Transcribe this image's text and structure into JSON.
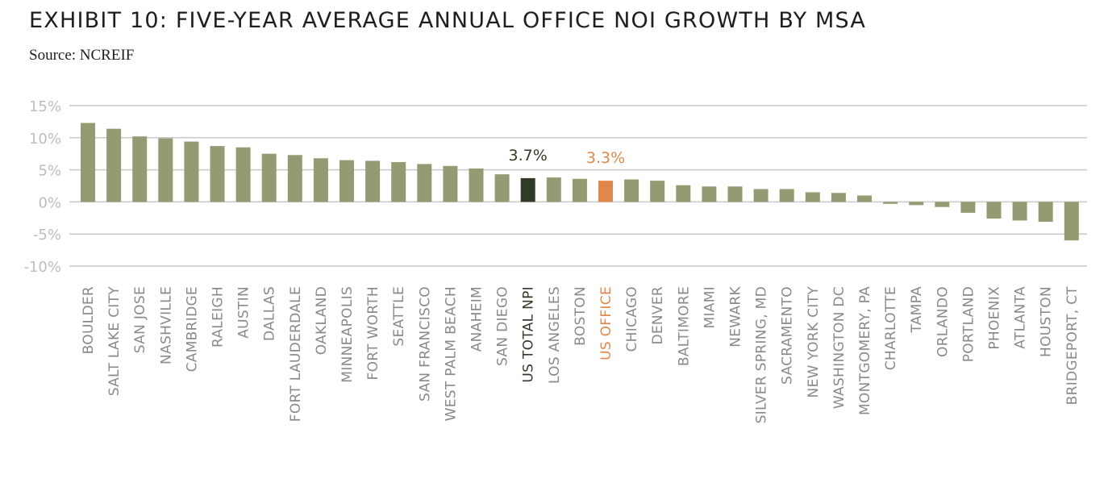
{
  "title": "EXHIBIT 10: FIVE-YEAR AVERAGE ANNUAL OFFICE NOI GROWTH BY MSA",
  "subtitle": "Source: NCREIF",
  "colors": {
    "default_bar": "#939b72",
    "us_total_npi": "#2f3b27",
    "us_office": "#e0884c",
    "grid": "#c9c9c9",
    "tick_text": "#bdbdbd",
    "label_text": "#8a8a8a"
  },
  "chart_data": {
    "type": "bar",
    "title": "EXHIBIT 10: FIVE-YEAR AVERAGE ANNUAL OFFICE NOI GROWTH BY MSA",
    "xlabel": "",
    "ylabel": "",
    "ylim": [
      -10,
      15
    ],
    "yticks": [
      15,
      10,
      5,
      0,
      -5,
      -10
    ],
    "ytick_labels": [
      "15%",
      "10%",
      "5%",
      "0%",
      "-5%",
      "-10%"
    ],
    "grid": true,
    "categories": [
      "BOULDER",
      "SALT LAKE CITY",
      "SAN JOSE",
      "NASHVILLE",
      "CAMBRIDGE",
      "RALEIGH",
      "AUSTIN",
      "DALLAS",
      "FORT LAUDERDALE",
      "OAKLAND",
      "MINNEAPOLIS",
      "FORT WORTH",
      "SEATTLE",
      "SAN FRANCISCO",
      "WEST PALM BEACH",
      "ANAHEIM",
      "SAN DIEGO",
      "US TOTAL NPI",
      "LOS ANGELES",
      "BOSTON",
      "US OFFICE",
      "CHICAGO",
      "DENVER",
      "BALTIMORE",
      "MIAMI",
      "NEWARK",
      "SILVER SPRING, MD",
      "SACRAMENTO",
      "NEW YORK CITY",
      "WASHINGTON DC",
      "MONTGOMERY, PA",
      "CHARLOTTE",
      "TAMPA",
      "ORLANDO",
      "PORTLAND",
      "PHOENIX",
      "ATLANTA",
      "HOUSTON",
      "BRIDGEPORT, CT"
    ],
    "values": [
      12.3,
      11.4,
      10.2,
      9.9,
      9.4,
      8.7,
      8.5,
      7.5,
      7.3,
      6.8,
      6.5,
      6.4,
      6.2,
      5.9,
      5.6,
      5.2,
      4.3,
      3.7,
      3.8,
      3.6,
      3.3,
      3.5,
      3.3,
      2.6,
      2.4,
      2.4,
      2.0,
      2.0,
      1.5,
      1.4,
      1.0,
      -0.3,
      -0.5,
      -0.8,
      -1.7,
      -2.6,
      -2.9,
      -3.1,
      -6.0
    ],
    "highlights": [
      {
        "category": "US TOTAL NPI",
        "label": "3.7%",
        "color": "#2f3b27"
      },
      {
        "category": "US OFFICE",
        "label": "3.3%",
        "color": "#e0884c"
      }
    ]
  }
}
